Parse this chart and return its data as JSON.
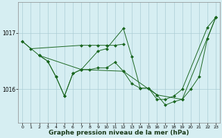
{
  "background_color": "#d6eef2",
  "grid_color": "#aaccd4",
  "line_color": "#1a6620",
  "xlabel": "Graphe pression niveau de la mer (hPa)",
  "xlabel_fontsize": 6.5,
  "yticks": [
    1016,
    1017
  ],
  "ylim": [
    1015.4,
    1017.55
  ],
  "xlim": [
    -0.5,
    23.5
  ],
  "xticks": [
    0,
    1,
    2,
    3,
    4,
    5,
    6,
    7,
    8,
    9,
    10,
    11,
    12,
    13,
    14,
    15,
    16,
    17,
    18,
    19,
    20,
    21,
    22,
    23
  ],
  "series1_x": [
    0,
    1,
    7,
    8,
    9,
    10,
    11,
    12
  ],
  "series1_y": [
    1016.85,
    1016.72,
    1016.78,
    1016.78,
    1016.78,
    1016.78,
    1016.78,
    1016.8
  ],
  "series2_x": [
    0,
    2,
    3,
    4,
    5,
    6,
    7,
    9,
    10,
    12,
    13,
    14,
    15,
    16,
    17,
    18,
    19,
    22,
    23
  ],
  "series2_y": [
    1016.85,
    1016.6,
    1016.5,
    1016.22,
    1015.88,
    1016.28,
    1016.35,
    1016.68,
    1016.72,
    1017.08,
    1016.58,
    1016.02,
    1016.02,
    1015.82,
    1015.82,
    1015.88,
    1016.0,
    1017.1,
    1017.28
  ],
  "series3_x": [
    2,
    3,
    4,
    5,
    6,
    7,
    8,
    9,
    10,
    11,
    12,
    13,
    14,
    15,
    16,
    17,
    18,
    19,
    20,
    21,
    22,
    23
  ],
  "series3_y": [
    1016.6,
    1016.5,
    1016.22,
    1015.88,
    1016.28,
    1016.35,
    1016.35,
    1016.38,
    1016.38,
    1016.48,
    1016.32,
    1016.1,
    1016.02,
    1016.02,
    1015.9,
    1015.72,
    1015.78,
    1015.82,
    1016.0,
    1016.22,
    1016.9,
    1017.28
  ],
  "series4_x": [
    2,
    7,
    12,
    16,
    19,
    23
  ],
  "series4_y": [
    1016.6,
    1016.35,
    1016.32,
    1015.9,
    1015.82,
    1017.28
  ]
}
